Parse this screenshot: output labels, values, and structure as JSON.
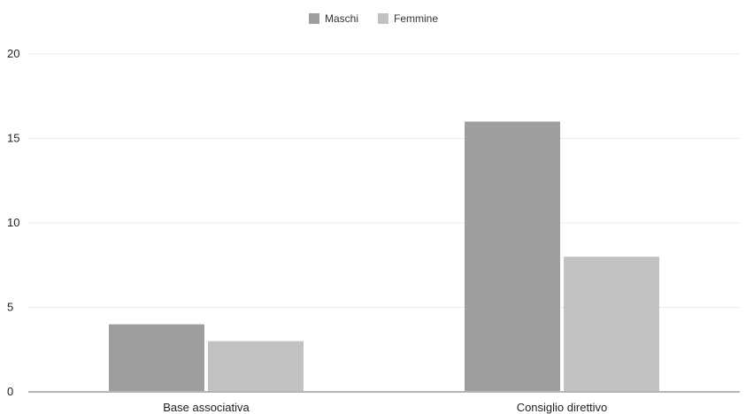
{
  "chart_data": {
    "type": "bar",
    "categories": [
      "Base associativa",
      "Consiglio direttivo"
    ],
    "series": [
      {
        "name": "Maschi",
        "values": [
          4,
          16
        ],
        "color": "#9e9e9e"
      },
      {
        "name": "Femmine",
        "values": [
          3,
          8
        ],
        "color": "#c2c2c2"
      }
    ],
    "yticks": [
      "0",
      "5",
      "10",
      "15",
      "20"
    ],
    "ylim": [
      0,
      20
    ],
    "grid": true,
    "legend_position": "top-center"
  }
}
